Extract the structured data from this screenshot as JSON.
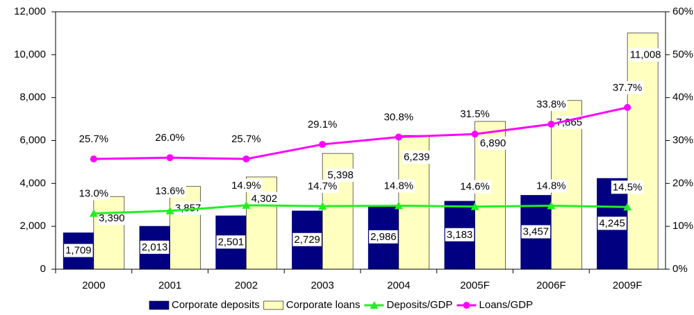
{
  "chart_data": {
    "type": "bar_line",
    "categories": [
      "2000",
      "2001",
      "2002",
      "2003",
      "2004",
      "2005F",
      "2006F",
      "2009F"
    ],
    "series": [
      {
        "name": "Corporate deposits",
        "type": "bar",
        "color": "#000080",
        "values": [
          1709,
          2013,
          2501,
          2729,
          2986,
          3183,
          3457,
          4245
        ],
        "value_labels": [
          "1,709",
          "2,013",
          "2,501",
          "2,729",
          "2,986",
          "3,183",
          "3,457",
          "4,245"
        ]
      },
      {
        "name": "Corporate loans",
        "type": "bar",
        "color": "#ffffc0",
        "values": [
          3390,
          3857,
          4302,
          5398,
          6239,
          6890,
          7865,
          11008
        ],
        "value_labels": [
          "3,390",
          "3,857",
          "4,302",
          "5,398",
          "6,239",
          "6,890",
          "7,865",
          "11,008"
        ]
      },
      {
        "name": "Deposits/GDP",
        "type": "line",
        "axis": "y2",
        "color": "#22ee22",
        "marker": "triangle",
        "values": [
          13.0,
          13.6,
          14.9,
          14.7,
          14.8,
          14.6,
          14.8,
          14.5
        ],
        "value_labels": [
          "13.0%",
          "13.6%",
          "14.9%",
          "14.7%",
          "14.8%",
          "14.6%",
          "14.8%",
          "14.5%"
        ]
      },
      {
        "name": "Loans/GDP",
        "type": "line",
        "axis": "y2",
        "color": "#ff00ff",
        "marker": "circle",
        "values": [
          25.7,
          26.0,
          25.7,
          29.1,
          30.8,
          31.5,
          33.8,
          37.7
        ],
        "value_labels": [
          "25.7%",
          "26.0%",
          "25.7%",
          "29.1%",
          "30.8%",
          "31.5%",
          "33.8%",
          "37.7%"
        ]
      }
    ],
    "ylim": [
      0,
      12000
    ],
    "yticks": [
      0,
      {
        "value": 2000,
        "label": "2,000"
      },
      {
        "value": 4000,
        "label": "4,000"
      },
      {
        "value": 6000,
        "label": "6,000"
      },
      {
        "value": 8000,
        "label": "8,000"
      },
      {
        "value": 10000,
        "label": "10,000"
      },
      {
        "value": 12000,
        "label": "12,000"
      }
    ],
    "y2lim": [
      0,
      60
    ],
    "y2ticks": [
      {
        "value": 0,
        "label": "0%"
      },
      {
        "value": 10,
        "label": "10%"
      },
      {
        "value": 20,
        "label": "20%"
      },
      {
        "value": 30,
        "label": "30%"
      },
      {
        "value": 40,
        "label": "40%"
      },
      {
        "value": 50,
        "label": "50%"
      },
      {
        "value": 60,
        "label": "60%"
      }
    ],
    "legend": "bottom"
  }
}
